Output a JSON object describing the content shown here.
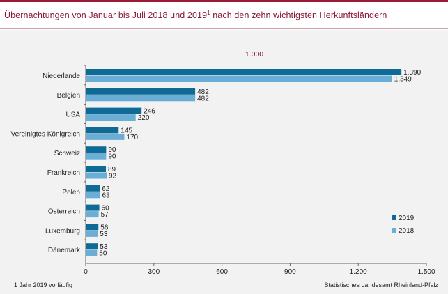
{
  "title": "Übernachtungen von Januar bis Juli 2018 und 2019",
  "title_footnote_mark": "1",
  "title_suffix": " nach den zehn wichtigsten Herkunftsländern",
  "footnote": "1 Jahr 2019 vorläufig",
  "source": "Statistisches Landesamt Rheinland-Pfalz",
  "colors": {
    "accent": "#8b1a36",
    "series_2019": "#0f6b96",
    "series_2018": "#6aaed6"
  },
  "chart_data": {
    "type": "bar",
    "orientation": "horizontal",
    "unit_label": "1.000",
    "categories": [
      "Niederlande",
      "Belgien",
      "USA",
      "Vereinigtes Königreich",
      "Schweiz",
      "Frankreich",
      "Polen",
      "Österreich",
      "Luxemburg",
      "Dänemark"
    ],
    "series": [
      {
        "name": "2019",
        "values": [
          1390,
          482,
          246,
          145,
          90,
          89,
          62,
          60,
          56,
          53
        ],
        "labels": [
          "1.390",
          "482",
          "246",
          "145",
          "90",
          "89",
          "62",
          "60",
          "56",
          "53"
        ]
      },
      {
        "name": "2018",
        "values": [
          1349,
          482,
          220,
          170,
          90,
          92,
          63,
          57,
          53,
          50
        ],
        "labels": [
          "1.349",
          "482",
          "220",
          "170",
          "90",
          "92",
          "63",
          "57",
          "53",
          "50"
        ]
      }
    ],
    "xlim": [
      0,
      1500
    ],
    "xticks": [
      0,
      300,
      600,
      900,
      1200,
      1500
    ],
    "xtick_labels": [
      "0",
      "300",
      "600",
      "900",
      "1.200",
      "1.500"
    ],
    "legend_position": "bottom-right",
    "grid": false
  }
}
